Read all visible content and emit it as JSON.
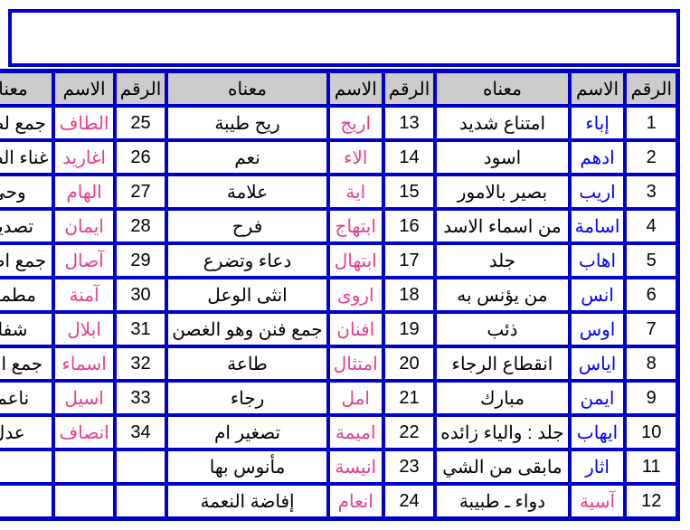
{
  "headers": {
    "num": "الرقم",
    "name": "الاسم",
    "meaning": "معناه"
  },
  "nameColors": {
    "blue": "#0000ff",
    "pink": "#e83e8c"
  },
  "rows": [
    {
      "r1": "1",
      "n1": "إباء",
      "c1": "blue",
      "m1": "امتناع شديد",
      "r2": "13",
      "n2": "اريج",
      "c2": "pink",
      "m2": "ريح طيبة",
      "r3": "25",
      "n3": "الطاف",
      "c3": "pink",
      "m3": "جمع لطف"
    },
    {
      "r1": "2",
      "n1": "ادهم",
      "c1": "blue",
      "m1": "اسود",
      "r2": "14",
      "n2": "الاء",
      "c2": "pink",
      "m2": "نعم",
      "r3": "26",
      "n3": "اغاريد",
      "c3": "pink",
      "m3": "غناء الطائر"
    },
    {
      "r1": "3",
      "n1": "اريب",
      "c1": "blue",
      "m1": "بصير بالامور",
      "r2": "15",
      "n2": "اية",
      "c2": "pink",
      "m2": "علامة",
      "r3": "27",
      "n3": "الهام",
      "c3": "pink",
      "m3": "وحي"
    },
    {
      "r1": "4",
      "n1": "اسامة",
      "c1": "blue",
      "m1": "من اسماء الاسد",
      "r2": "16",
      "n2": "ابتهاج",
      "c2": "pink",
      "m2": "فرح",
      "r3": "28",
      "n3": "ايمان",
      "c3": "pink",
      "m3": "تصديق"
    },
    {
      "r1": "5",
      "n1": "اهاب",
      "c1": "blue",
      "m1": "جلد",
      "r2": "17",
      "n2": "ابتهال",
      "c2": "pink",
      "m2": "دعاء وتضرع",
      "r3": "29",
      "n3": "آصال",
      "c3": "pink",
      "m3": "جمع اصيل"
    },
    {
      "r1": "6",
      "n1": "انس",
      "c1": "blue",
      "m1": "من يؤنس به",
      "r2": "18",
      "n2": "اروى",
      "c2": "pink",
      "m2": "انثى الوعل",
      "r3": "30",
      "n3": "آمنة",
      "c3": "pink",
      "m3": "مطمئنة"
    },
    {
      "r1": "7",
      "n1": "اوس",
      "c1": "blue",
      "m1": "ذئب",
      "r2": "19",
      "n2": "افنان",
      "c2": "pink",
      "m2": "جمع فنن وهو الغصن",
      "r3": "31",
      "n3": "ابلال",
      "c3": "pink",
      "m3": "شفاء"
    },
    {
      "r1": "8",
      "n1": "اياس",
      "c1": "blue",
      "m1": "انقطاع الرجاء",
      "r2": "20",
      "n2": "امتثال",
      "c2": "pink",
      "m2": "طاعة",
      "r3": "32",
      "n3": "اسماء",
      "c3": "pink",
      "m3": "جمع اسم"
    },
    {
      "r1": "9",
      "n1": "ايمن",
      "c1": "blue",
      "m1": "مبارك",
      "r2": "21",
      "n2": "امل",
      "c2": "pink",
      "m2": "رجاء",
      "r3": "33",
      "n3": "اسيل",
      "c3": "pink",
      "m3": "ناعمة"
    },
    {
      "r1": "10",
      "n1": "ايهاب",
      "c1": "blue",
      "m1": "جلد : والياء زائده",
      "r2": "22",
      "n2": "اميمة",
      "c2": "pink",
      "m2": "تصغير ام",
      "r3": "34",
      "n3": "انصاف",
      "c3": "pink",
      "m3": "عدل"
    },
    {
      "r1": "11",
      "n1": "اثار",
      "c1": "blue",
      "m1": "مابقى من الشي",
      "r2": "23",
      "n2": "انيسة",
      "c2": "pink",
      "m2": "مأنوس بها",
      "r3": "",
      "n3": "",
      "c3": "",
      "m3": ""
    },
    {
      "r1": "12",
      "n1": "آسية",
      "c1": "pink",
      "m1": "دواء ـ طبيبة",
      "r2": "24",
      "n2": "انعام",
      "c2": "pink",
      "m2": "إفاضة النعمة",
      "r3": "",
      "n3": "",
      "c3": "",
      "m3": ""
    }
  ]
}
